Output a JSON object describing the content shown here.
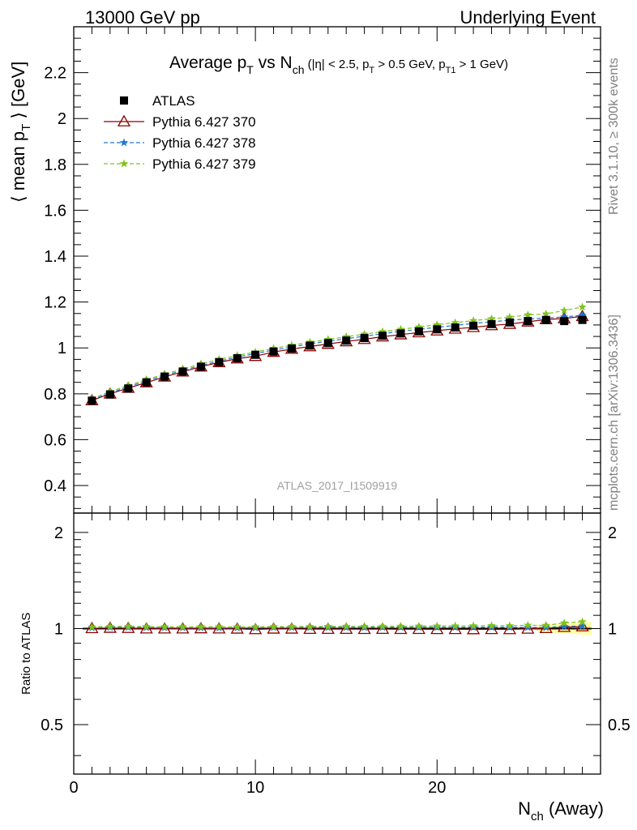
{
  "header": {
    "left": "13000 GeV pp",
    "right": "Underlying Event"
  },
  "side_labels": {
    "rivet": "Rivet 3.1.10, ≥ 300k events",
    "mcplots": "mcplots.cern.ch [arXiv:1306.3436]"
  },
  "watermark": "ATLAS_2017_I1509919",
  "chart_data": {
    "type": "line",
    "title": "Average p_T vs N_ch (|η| < 2.5, p_T > 0.5 GeV, p_T1 > 1 GeV)",
    "ylabel": "⟨ mean p_T ⟩ [GeV]",
    "xlabel": "N_ch (Away)",
    "ratio_ylabel": "Ratio to ATLAS",
    "xlim": [
      0,
      29
    ],
    "ylim": [
      0.28,
      2.4
    ],
    "ratio_ylim": [
      0.35,
      2.3
    ],
    "ratio_log_scale": true,
    "x_ticks": [
      0,
      10,
      20
    ],
    "y_ticks": [
      0.4,
      0.6,
      0.8,
      1,
      1.2,
      1.4,
      1.6,
      1.8,
      2,
      2.2
    ],
    "y_tick_labels": [
      "0.4",
      "0.6",
      "0.8",
      "1",
      "1.2",
      "1.4",
      "1.6",
      "1.8",
      "2",
      "2.2"
    ],
    "ratio_ticks": [
      0.5,
      1,
      2
    ],
    "ratio_tick_labels": [
      "0.5",
      "1",
      "2"
    ],
    "x": [
      1,
      2,
      3,
      4,
      5,
      6,
      7,
      8,
      9,
      10,
      11,
      12,
      13,
      14,
      15,
      16,
      17,
      18,
      19,
      20,
      21,
      22,
      23,
      24,
      25,
      26,
      27,
      28
    ],
    "legend_position": "top-left",
    "series": [
      {
        "name": "ATLAS",
        "marker": "square",
        "color": "#000000",
        "values": [
          0.77,
          0.797,
          0.823,
          0.85,
          0.875,
          0.897,
          0.918,
          0.938,
          0.955,
          0.97,
          0.984,
          0.997,
          1.01,
          1.021,
          1.032,
          1.043,
          1.053,
          1.063,
          1.072,
          1.081,
          1.089,
          1.097,
          1.104,
          1.111,
          1.117,
          1.122,
          1.117,
          1.122
        ]
      },
      {
        "name": "Pythia 6.427 370",
        "marker": "triangle",
        "color": "#8b0000",
        "values": [
          0.771,
          0.8,
          0.825,
          0.849,
          0.874,
          0.896,
          0.918,
          0.937,
          0.953,
          0.964,
          0.982,
          0.995,
          1.006,
          1.017,
          1.028,
          1.038,
          1.049,
          1.058,
          1.067,
          1.075,
          1.083,
          1.09,
          1.098,
          1.104,
          1.114,
          1.124,
          1.128,
          1.138
        ]
      },
      {
        "name": "Pythia 6.427 378",
        "marker": "star",
        "color": "#1e78d2",
        "values": [
          0.774,
          0.804,
          0.83,
          0.856,
          0.88,
          0.902,
          0.923,
          0.942,
          0.96,
          0.975,
          0.991,
          1.004,
          1.018,
          1.029,
          1.04,
          1.051,
          1.062,
          1.072,
          1.081,
          1.09,
          1.098,
          1.107,
          1.114,
          1.121,
          1.126,
          1.13,
          1.135,
          1.142
        ]
      },
      {
        "name": "Pythia 6.427 379",
        "marker": "star",
        "color": "#7fc31c",
        "values": [
          0.779,
          0.81,
          0.836,
          0.862,
          0.886,
          0.908,
          0.93,
          0.95,
          0.967,
          0.982,
          0.998,
          1.012,
          1.025,
          1.037,
          1.049,
          1.06,
          1.071,
          1.081,
          1.091,
          1.101,
          1.11,
          1.119,
          1.127,
          1.134,
          1.144,
          1.148,
          1.163,
          1.178
        ]
      }
    ]
  }
}
